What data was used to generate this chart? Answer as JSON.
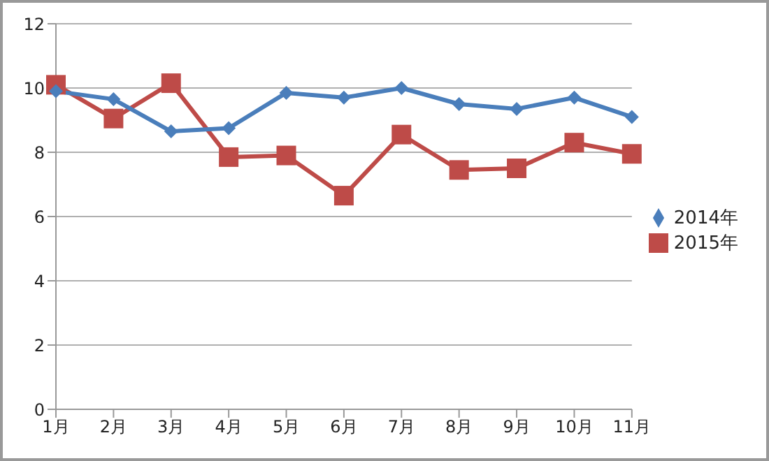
{
  "chart_data": {
    "type": "line",
    "categories": [
      "1月",
      "2月",
      "3月",
      "4月",
      "5月",
      "6月",
      "7月",
      "8月",
      "9月",
      "10月",
      "11月"
    ],
    "series": [
      {
        "name": "2014年",
        "color": "#4a7ebb",
        "marker": "diamond",
        "values": [
          9.9,
          9.65,
          8.65,
          8.75,
          9.85,
          9.7,
          10.0,
          9.5,
          9.35,
          9.7,
          9.1
        ]
      },
      {
        "name": "2015年",
        "color": "#be4b48",
        "marker": "square",
        "values": [
          10.1,
          9.05,
          10.15,
          7.85,
          7.9,
          6.65,
          8.55,
          7.45,
          7.5,
          8.3,
          7.95
        ]
      }
    ],
    "ylim": [
      0,
      12
    ],
    "yticks": [
      0,
      2,
      4,
      6,
      8,
      10,
      12
    ],
    "grid": "y",
    "legend": "right"
  }
}
